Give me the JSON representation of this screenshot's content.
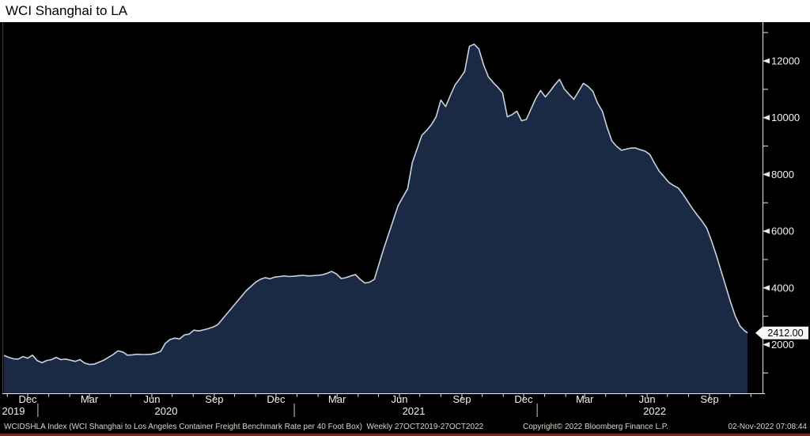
{
  "window": {
    "title": "WCI Shanghai to LA"
  },
  "footer": {
    "description": "WCIDSHLA Index (WCI Shanghai to Los Angeles Container Freight Benchmark Rate per 40 Foot Box)  Weekly 27OCT2019-27OCT2022",
    "copyright": "Copyright© 2022 Bloomberg Finance L.P.",
    "timestamp": "02-Nov-2022 07:08:44"
  },
  "colors": {
    "chart_bg": "#000000",
    "area_fill": "#1a2a45",
    "line": "#c9d3de",
    "axis": "#e9e9e9",
    "tick_label": "#f2f2f2",
    "frame_left": "#3f3f3f",
    "year_separator": "#a8a8a8",
    "title_bg": "#ffffff",
    "title_text": "#000000",
    "footer_text": "#d9d4c6",
    "bottom_rule": "#6e2c19",
    "badge_bg": "#f7f7f7",
    "badge_text": "#000000"
  },
  "chart_data": {
    "type": "area",
    "title": "WCI Shanghai to LA",
    "x_range": [
      "2019-10-27",
      "2022-10-27"
    ],
    "ylim_axis_labels": [
      2000,
      12000
    ],
    "grid": false,
    "legend": "none",
    "last_price": {
      "label": "2412.00",
      "value": 2412.0
    },
    "y_axis": {
      "side": "right",
      "major_ticks": [
        {
          "label": "2000",
          "value": 2000
        },
        {
          "label": "4000",
          "value": 4000
        },
        {
          "label": "6000",
          "value": 6000
        },
        {
          "label": "8000",
          "value": 8000
        },
        {
          "label": "10000",
          "value": 10000
        },
        {
          "label": "12000",
          "value": 12000
        }
      ],
      "minor_tick_values": [
        1000,
        3000,
        5000,
        7000,
        9000,
        11000,
        13000
      ]
    },
    "x_axis": {
      "labels": [
        {
          "label": "Dec",
          "date": "2019-12-01"
        },
        {
          "label": "Mar",
          "date": "2020-03-01"
        },
        {
          "label": "Jun",
          "date": "2020-06-01"
        },
        {
          "label": "Sep",
          "date": "2020-09-01"
        },
        {
          "label": "Dec",
          "date": "2020-12-01"
        },
        {
          "label": "Mar",
          "date": "2021-03-01"
        },
        {
          "label": "Jun",
          "date": "2021-06-01"
        },
        {
          "label": "Sep",
          "date": "2021-09-01"
        },
        {
          "label": "Dec",
          "date": "2021-12-01"
        },
        {
          "label": "Mar",
          "date": "2022-03-01"
        },
        {
          "label": "Jun",
          "date": "2022-06-01"
        },
        {
          "label": "Sep",
          "date": "2022-09-01"
        }
      ],
      "minor_ticks": "monthly",
      "minor_tick_range": [
        "2019-11-01",
        "2022-11-01"
      ],
      "year_labels": [
        {
          "label": "2019",
          "date": "2019-11-10"
        },
        {
          "label": "2020",
          "date": "2020-06-22"
        },
        {
          "label": "2021",
          "date": "2021-06-22"
        },
        {
          "label": "2022",
          "date": "2022-06-12"
        }
      ],
      "year_separators": [
        "2019-12-16",
        "2020-12-28",
        "2021-12-21"
      ]
    },
    "series": [
      {
        "name": "WCIDSHLA Index",
        "points": [
          [
            "2019-10-27",
            1620
          ],
          [
            "2019-11-03",
            1550
          ],
          [
            "2019-11-10",
            1500
          ],
          [
            "2019-11-17",
            1490
          ],
          [
            "2019-11-24",
            1580
          ],
          [
            "2019-12-01",
            1520
          ],
          [
            "2019-12-08",
            1630
          ],
          [
            "2019-12-15",
            1440
          ],
          [
            "2019-12-22",
            1360
          ],
          [
            "2019-12-29",
            1440
          ],
          [
            "2020-01-05",
            1470
          ],
          [
            "2020-01-12",
            1550
          ],
          [
            "2020-01-19",
            1470
          ],
          [
            "2020-01-26",
            1490
          ],
          [
            "2020-02-02",
            1450
          ],
          [
            "2020-02-09",
            1410
          ],
          [
            "2020-02-16",
            1470
          ],
          [
            "2020-02-23",
            1350
          ],
          [
            "2020-03-01",
            1300
          ],
          [
            "2020-03-08",
            1310
          ],
          [
            "2020-03-15",
            1380
          ],
          [
            "2020-03-22",
            1450
          ],
          [
            "2020-03-29",
            1550
          ],
          [
            "2020-04-05",
            1650
          ],
          [
            "2020-04-12",
            1780
          ],
          [
            "2020-04-19",
            1740
          ],
          [
            "2020-04-26",
            1630
          ],
          [
            "2020-05-03",
            1640
          ],
          [
            "2020-05-10",
            1660
          ],
          [
            "2020-05-17",
            1650
          ],
          [
            "2020-05-24",
            1650
          ],
          [
            "2020-05-31",
            1660
          ],
          [
            "2020-06-07",
            1700
          ],
          [
            "2020-06-14",
            1760
          ],
          [
            "2020-06-21",
            2050
          ],
          [
            "2020-06-28",
            2180
          ],
          [
            "2020-07-05",
            2230
          ],
          [
            "2020-07-12",
            2200
          ],
          [
            "2020-07-19",
            2340
          ],
          [
            "2020-07-26",
            2370
          ],
          [
            "2020-08-02",
            2510
          ],
          [
            "2020-08-09",
            2480
          ],
          [
            "2020-08-16",
            2520
          ],
          [
            "2020-08-23",
            2560
          ],
          [
            "2020-08-30",
            2620
          ],
          [
            "2020-09-06",
            2700
          ],
          [
            "2020-09-13",
            2900
          ],
          [
            "2020-09-20",
            3100
          ],
          [
            "2020-09-27",
            3300
          ],
          [
            "2020-10-04",
            3500
          ],
          [
            "2020-10-11",
            3700
          ],
          [
            "2020-10-18",
            3900
          ],
          [
            "2020-10-25",
            4050
          ],
          [
            "2020-11-01",
            4200
          ],
          [
            "2020-11-08",
            4300
          ],
          [
            "2020-11-15",
            4360
          ],
          [
            "2020-11-22",
            4320
          ],
          [
            "2020-11-29",
            4380
          ],
          [
            "2020-12-06",
            4400
          ],
          [
            "2020-12-13",
            4420
          ],
          [
            "2020-12-20",
            4400
          ],
          [
            "2020-12-27",
            4410
          ],
          [
            "2021-01-03",
            4430
          ],
          [
            "2021-01-10",
            4440
          ],
          [
            "2021-01-17",
            4420
          ],
          [
            "2021-01-24",
            4430
          ],
          [
            "2021-01-31",
            4440
          ],
          [
            "2021-02-07",
            4460
          ],
          [
            "2021-02-14",
            4510
          ],
          [
            "2021-02-21",
            4580
          ],
          [
            "2021-02-28",
            4490
          ],
          [
            "2021-03-07",
            4330
          ],
          [
            "2021-03-14",
            4360
          ],
          [
            "2021-03-21",
            4420
          ],
          [
            "2021-03-28",
            4470
          ],
          [
            "2021-04-04",
            4300
          ],
          [
            "2021-04-11",
            4170
          ],
          [
            "2021-04-18",
            4200
          ],
          [
            "2021-04-25",
            4300
          ],
          [
            "2021-05-02",
            4860
          ],
          [
            "2021-05-09",
            5400
          ],
          [
            "2021-05-16",
            5900
          ],
          [
            "2021-05-23",
            6400
          ],
          [
            "2021-05-30",
            6900
          ],
          [
            "2021-06-06",
            7200
          ],
          [
            "2021-06-13",
            7490
          ],
          [
            "2021-06-20",
            8420
          ],
          [
            "2021-06-27",
            8900
          ],
          [
            "2021-07-04",
            9380
          ],
          [
            "2021-07-11",
            9550
          ],
          [
            "2021-07-18",
            9750
          ],
          [
            "2021-07-25",
            10030
          ],
          [
            "2021-08-01",
            10620
          ],
          [
            "2021-08-08",
            10390
          ],
          [
            "2021-08-15",
            10790
          ],
          [
            "2021-08-22",
            11160
          ],
          [
            "2021-08-29",
            11380
          ],
          [
            "2021-09-05",
            11630
          ],
          [
            "2021-09-12",
            12510
          ],
          [
            "2021-09-19",
            12590
          ],
          [
            "2021-09-26",
            12420
          ],
          [
            "2021-10-03",
            11860
          ],
          [
            "2021-10-10",
            11440
          ],
          [
            "2021-10-17",
            11240
          ],
          [
            "2021-10-24",
            11070
          ],
          [
            "2021-10-31",
            10870
          ],
          [
            "2021-11-07",
            10030
          ],
          [
            "2021-11-14",
            10110
          ],
          [
            "2021-11-21",
            10230
          ],
          [
            "2021-11-28",
            9890
          ],
          [
            "2021-12-05",
            9940
          ],
          [
            "2021-12-12",
            10310
          ],
          [
            "2021-12-19",
            10680
          ],
          [
            "2021-12-26",
            10960
          ],
          [
            "2022-01-02",
            10730
          ],
          [
            "2022-01-09",
            10930
          ],
          [
            "2022-01-16",
            11160
          ],
          [
            "2022-01-23",
            11350
          ],
          [
            "2022-01-30",
            11010
          ],
          [
            "2022-02-06",
            10820
          ],
          [
            "2022-02-13",
            10650
          ],
          [
            "2022-02-20",
            10930
          ],
          [
            "2022-02-27",
            11210
          ],
          [
            "2022-03-06",
            11100
          ],
          [
            "2022-03-13",
            10930
          ],
          [
            "2022-03-20",
            10510
          ],
          [
            "2022-03-27",
            10230
          ],
          [
            "2022-04-03",
            9660
          ],
          [
            "2022-04-10",
            9180
          ],
          [
            "2022-04-17",
            8990
          ],
          [
            "2022-04-24",
            8850
          ],
          [
            "2022-05-01",
            8890
          ],
          [
            "2022-05-08",
            8930
          ],
          [
            "2022-05-15",
            8930
          ],
          [
            "2022-05-22",
            8870
          ],
          [
            "2022-05-29",
            8820
          ],
          [
            "2022-06-05",
            8700
          ],
          [
            "2022-06-12",
            8390
          ],
          [
            "2022-06-19",
            8110
          ],
          [
            "2022-06-26",
            7920
          ],
          [
            "2022-07-03",
            7720
          ],
          [
            "2022-07-10",
            7610
          ],
          [
            "2022-07-17",
            7520
          ],
          [
            "2022-07-24",
            7300
          ],
          [
            "2022-07-31",
            7040
          ],
          [
            "2022-08-07",
            6790
          ],
          [
            "2022-08-14",
            6560
          ],
          [
            "2022-08-21",
            6350
          ],
          [
            "2022-08-28",
            6100
          ],
          [
            "2022-09-04",
            5650
          ],
          [
            "2022-09-11",
            5150
          ],
          [
            "2022-09-18",
            4600
          ],
          [
            "2022-09-25",
            4050
          ],
          [
            "2022-10-02",
            3500
          ],
          [
            "2022-10-09",
            3000
          ],
          [
            "2022-10-16",
            2650
          ],
          [
            "2022-10-23",
            2480
          ],
          [
            "2022-10-27",
            2412
          ]
        ]
      }
    ]
  }
}
